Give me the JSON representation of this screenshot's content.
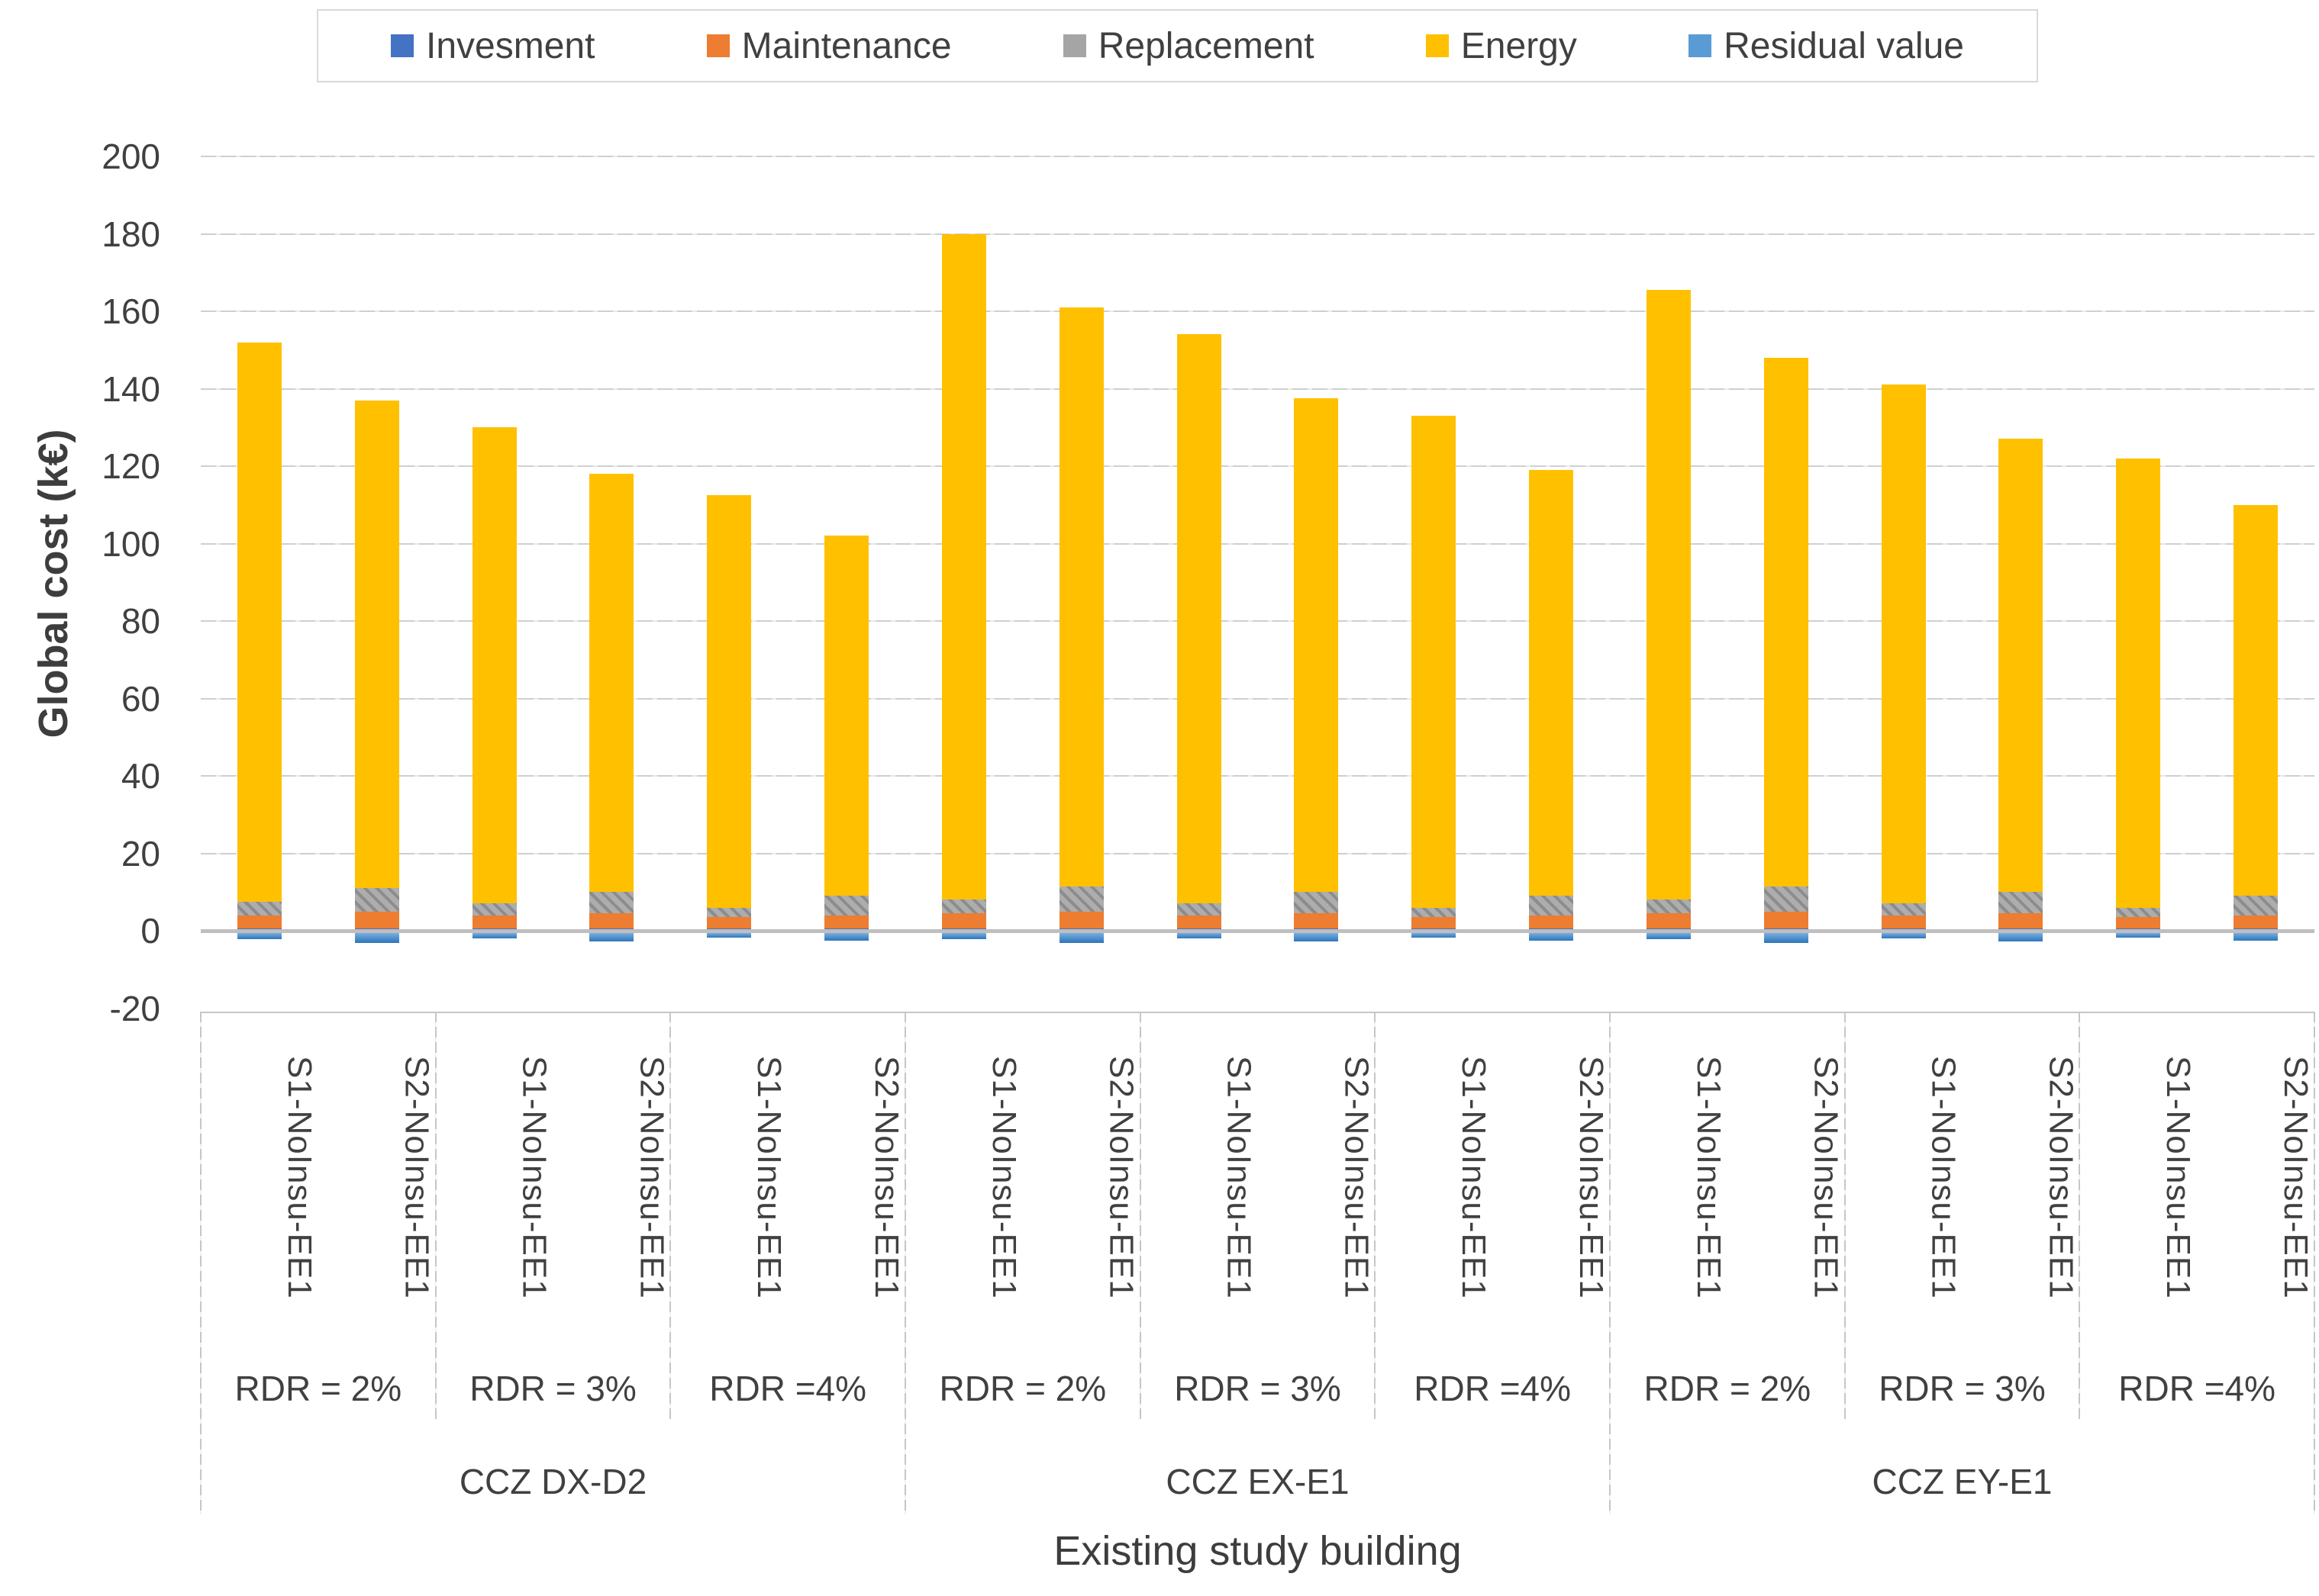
{
  "chart_data": {
    "type": "bar",
    "stacked": true,
    "ylabel": "Global cost (k€)",
    "xlabel": "Existing study building",
    "ylim": [
      -20,
      200
    ],
    "yticks": [
      200,
      180,
      160,
      140,
      120,
      100,
      80,
      60,
      40,
      20,
      0,
      -20
    ],
    "grid": "horizontal",
    "legend_position": "top",
    "legend": [
      {
        "label": "Invesment",
        "series": "investment",
        "color": "#4472C4"
      },
      {
        "label": "Maintenance",
        "series": "maintenance",
        "color": "#ED7D31"
      },
      {
        "label": "Replacement",
        "series": "replacement",
        "color": "#A5A5A5"
      },
      {
        "label": "Energy",
        "series": "energy",
        "color": "#FFC000"
      },
      {
        "label": "Residual value",
        "series": "residual_value",
        "color": "#5B9BD5"
      }
    ],
    "colors": {
      "investment": "#4472C4",
      "maintenance": "#ED7D31",
      "replacement": "#A5A5A5",
      "energy": "#FFC000",
      "residual_value": "#5B9BD5",
      "axis_line": "#BFBFBF",
      "gridline": "#D0D0D0"
    },
    "groups": [
      {
        "label": "CCZ DX-D2",
        "subgroups": [
          "RDR = 2%",
          "RDR = 3%",
          "RDR =4%"
        ]
      },
      {
        "label": "CCZ EX-E1",
        "subgroups": [
          "RDR = 2%",
          "RDR = 3%",
          "RDR =4%"
        ]
      },
      {
        "label": "CCZ EY-E1",
        "subgroups": [
          "RDR = 2%",
          "RDR = 3%",
          "RDR =4%"
        ]
      }
    ],
    "bars": [
      {
        "category": "S1-NoInsu-EE1",
        "ccz": "CCZ DX-D2",
        "rdr": "RDR = 2%",
        "investment": 0.5,
        "maintenance": 3.5,
        "replacement": 3.5,
        "energy": 144.5,
        "residual_value": -1.5,
        "total": 152
      },
      {
        "category": "S2-NoInsu-EE1",
        "ccz": "CCZ DX-D2",
        "rdr": "RDR = 2%",
        "investment": 0.5,
        "maintenance": 4.5,
        "replacement": 6.0,
        "energy": 126.0,
        "residual_value": -2.5,
        "total": 137
      },
      {
        "category": "S1-NoInsu-EE1",
        "ccz": "CCZ DX-D2",
        "rdr": "RDR = 3%",
        "investment": 0.5,
        "maintenance": 3.5,
        "replacement": 3.0,
        "energy": 123.0,
        "residual_value": -1.3,
        "total": 130
      },
      {
        "category": "S2-NoInsu-EE1",
        "ccz": "CCZ DX-D2",
        "rdr": "RDR = 3%",
        "investment": 0.5,
        "maintenance": 4.0,
        "replacement": 5.5,
        "energy": 108.0,
        "residual_value": -2.2,
        "total": 118
      },
      {
        "category": "S1-NoInsu-EE1",
        "ccz": "CCZ DX-D2",
        "rdr": "RDR =4%",
        "investment": 0.5,
        "maintenance": 3.0,
        "replacement": 2.5,
        "energy": 106.5,
        "residual_value": -1.2,
        "total": 112.5
      },
      {
        "category": "S2-NoInsu-EE1",
        "ccz": "CCZ DX-D2",
        "rdr": "RDR =4%",
        "investment": 0.5,
        "maintenance": 3.5,
        "replacement": 5.0,
        "energy": 93.0,
        "residual_value": -2.0,
        "total": 102
      },
      {
        "category": "S1-NoInsu-EE1",
        "ccz": "CCZ EX-E1",
        "rdr": "RDR = 2%",
        "investment": 0.5,
        "maintenance": 4.0,
        "replacement": 3.5,
        "energy": 172.0,
        "residual_value": -1.5,
        "total": 180
      },
      {
        "category": "S2-NoInsu-EE1",
        "ccz": "CCZ EX-E1",
        "rdr": "RDR = 2%",
        "investment": 0.5,
        "maintenance": 4.5,
        "replacement": 6.5,
        "energy": 149.5,
        "residual_value": -2.5,
        "total": 161
      },
      {
        "category": "S1-NoInsu-EE1",
        "ccz": "CCZ EX-E1",
        "rdr": "RDR = 3%",
        "investment": 0.5,
        "maintenance": 3.5,
        "replacement": 3.0,
        "energy": 147.0,
        "residual_value": -1.3,
        "total": 154
      },
      {
        "category": "S2-NoInsu-EE1",
        "ccz": "CCZ EX-E1",
        "rdr": "RDR = 3%",
        "investment": 0.5,
        "maintenance": 4.0,
        "replacement": 5.5,
        "energy": 127.5,
        "residual_value": -2.2,
        "total": 137.5
      },
      {
        "category": "S1-NoInsu-EE1",
        "ccz": "CCZ EX-E1",
        "rdr": "RDR =4%",
        "investment": 0.5,
        "maintenance": 3.0,
        "replacement": 2.5,
        "energy": 127.0,
        "residual_value": -1.2,
        "total": 133
      },
      {
        "category": "S2-NoInsu-EE1",
        "ccz": "CCZ EX-E1",
        "rdr": "RDR =4%",
        "investment": 0.5,
        "maintenance": 3.5,
        "replacement": 5.0,
        "energy": 110.0,
        "residual_value": -2.0,
        "total": 119
      },
      {
        "category": "S1-NoInsu-EE1",
        "ccz": "CCZ EY-E1",
        "rdr": "RDR = 2%",
        "investment": 0.5,
        "maintenance": 4.0,
        "replacement": 3.5,
        "energy": 157.5,
        "residual_value": -1.5,
        "total": 165.5
      },
      {
        "category": "S2-NoInsu-EE1",
        "ccz": "CCZ EY-E1",
        "rdr": "RDR = 2%",
        "investment": 0.5,
        "maintenance": 4.5,
        "replacement": 6.5,
        "energy": 136.5,
        "residual_value": -2.5,
        "total": 148
      },
      {
        "category": "S1-NoInsu-EE1",
        "ccz": "CCZ EY-E1",
        "rdr": "RDR = 3%",
        "investment": 0.5,
        "maintenance": 3.5,
        "replacement": 3.0,
        "energy": 134.0,
        "residual_value": -1.3,
        "total": 141
      },
      {
        "category": "S2-NoInsu-EE1",
        "ccz": "CCZ EY-E1",
        "rdr": "RDR = 3%",
        "investment": 0.5,
        "maintenance": 4.0,
        "replacement": 5.5,
        "energy": 117.0,
        "residual_value": -2.2,
        "total": 127
      },
      {
        "category": "S1-NoInsu-EE1",
        "ccz": "CCZ EY-E1",
        "rdr": "RDR =4%",
        "investment": 0.5,
        "maintenance": 3.0,
        "replacement": 2.5,
        "energy": 116.0,
        "residual_value": -1.2,
        "total": 122
      },
      {
        "category": "S2-NoInsu-EE1",
        "ccz": "CCZ EY-E1",
        "rdr": "RDR =4%",
        "investment": 0.5,
        "maintenance": 3.5,
        "replacement": 5.0,
        "energy": 101.0,
        "residual_value": -2.0,
        "total": 110
      }
    ]
  }
}
